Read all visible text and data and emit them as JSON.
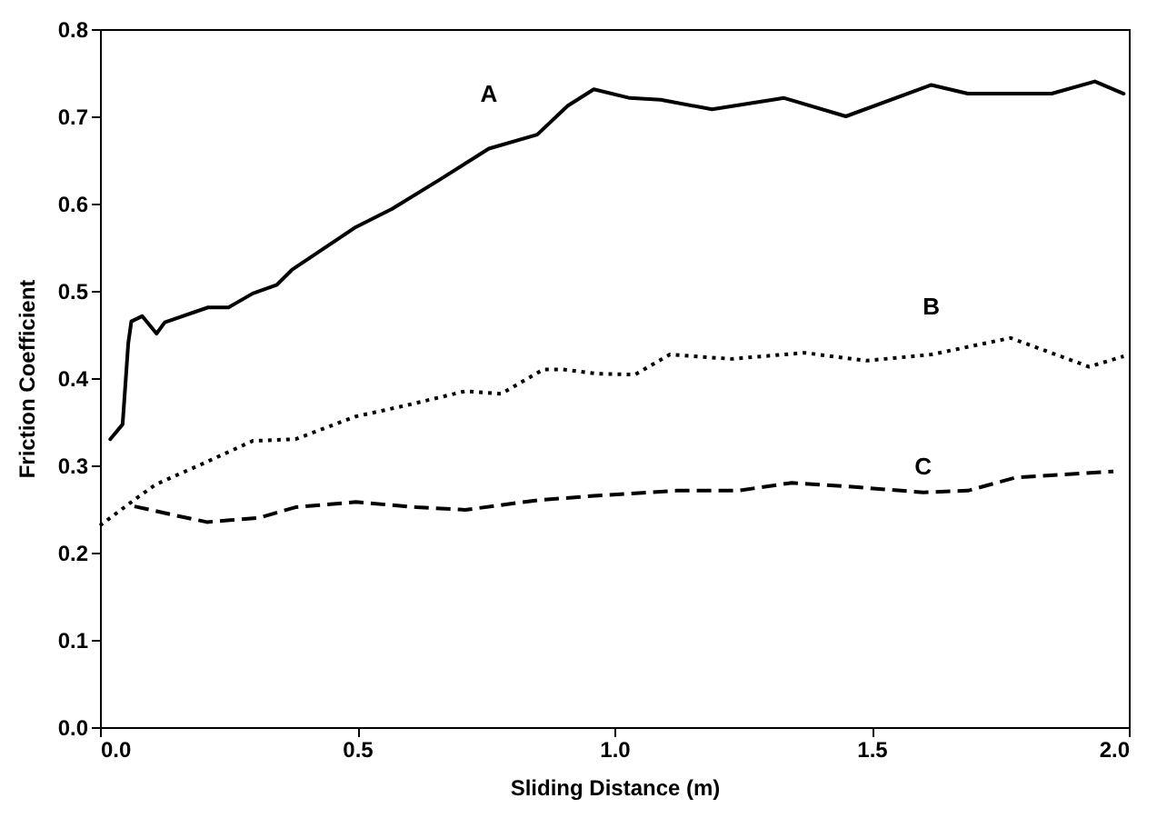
{
  "chart_data": {
    "type": "line",
    "xlabel": "Sliding Distance (m)",
    "ylabel": "Friction Coefficient",
    "xlim": [
      0,
      2
    ],
    "xticks": [
      {
        "value": 0,
        "label": "0.0"
      },
      0.5,
      {
        "value": 1,
        "label": "1.0"
      },
      1.5,
      {
        "value": 2,
        "label": "2.0"
      }
    ],
    "ylim": [
      0,
      0.8
    ],
    "yticks": [
      {
        "value": 0,
        "label": "0.0"
      },
      0.1,
      0.2,
      0.3,
      0.4,
      0.5,
      0.6,
      0.7,
      0.8
    ],
    "grid": false,
    "marker": "none",
    "series": [
      {
        "name": "A",
        "color": "#000000",
        "line_style": "solid",
        "x": [
          0.02,
          0.044,
          0.055,
          0.061,
          0.082,
          0.11,
          0.126,
          0.21,
          0.25,
          0.297,
          0.344,
          0.373,
          0.497,
          0.568,
          0.662,
          0.756,
          0.85,
          0.909,
          0.96,
          1.03,
          1.09,
          1.19,
          1.33,
          1.45,
          1.616,
          1.687,
          1.85,
          1.934,
          1.99
        ],
        "values": [
          0.33,
          0.347,
          0.44,
          0.465,
          0.471,
          0.451,
          0.464,
          0.481,
          0.481,
          0.497,
          0.507,
          0.524,
          0.573,
          0.594,
          0.628,
          0.663,
          0.679,
          0.712,
          0.731,
          0.721,
          0.719,
          0.708,
          0.721,
          0.7,
          0.736,
          0.726,
          0.726,
          0.74,
          0.726
        ]
      },
      {
        "name": "B",
        "color": "#000000",
        "line_style": "dotted",
        "x": [
          0.0,
          0.061,
          0.108,
          0.2,
          0.297,
          0.38,
          0.497,
          0.59,
          0.71,
          0.78,
          0.862,
          0.9,
          0.968,
          1.04,
          1.108,
          1.227,
          1.37,
          1.49,
          1.616,
          1.77,
          1.923,
          1.99
        ],
        "values": [
          0.231,
          0.258,
          0.278,
          0.302,
          0.328,
          0.33,
          0.356,
          0.368,
          0.385,
          0.382,
          0.41,
          0.41,
          0.405,
          0.404,
          0.427,
          0.422,
          0.429,
          0.42,
          0.427,
          0.446,
          0.413,
          0.425
        ]
      },
      {
        "name": "C",
        "color": "#000000",
        "line_style": "dashed",
        "x": [
          0.067,
          0.144,
          0.208,
          0.31,
          0.38,
          0.497,
          0.615,
          0.71,
          0.85,
          0.96,
          1.12,
          1.24,
          1.345,
          1.45,
          1.6,
          1.687,
          1.78,
          1.97
        ],
        "values": [
          0.253,
          0.243,
          0.235,
          0.24,
          0.252,
          0.258,
          0.252,
          0.249,
          0.26,
          0.265,
          0.271,
          0.271,
          0.28,
          0.276,
          0.269,
          0.271,
          0.286,
          0.293
        ]
      }
    ]
  }
}
